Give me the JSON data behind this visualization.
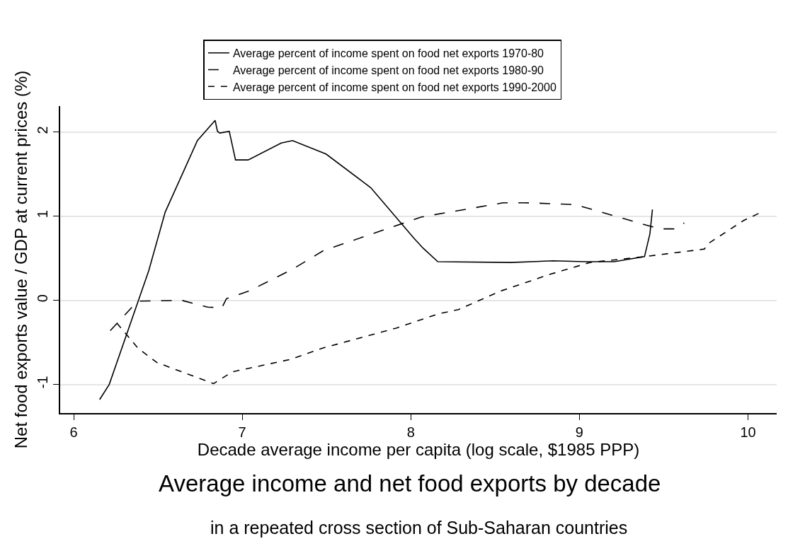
{
  "chart_data": {
    "type": "line",
    "title": "Average income and net food exports by decade",
    "subtitle": "in a repeated cross section of Sub-Saharan countries",
    "xlabel": "Decade average income per capita (log scale, $1985 PPP)",
    "ylabel": "Net food exports value / GDP at current prices (%)",
    "xlim": [
      5.92,
      10.17
    ],
    "xticks": [
      6,
      7,
      8,
      9,
      10
    ],
    "ylim": [
      -1.34,
      2.31
    ],
    "yticks": [
      -1,
      0,
      1,
      2
    ],
    "grid": "y",
    "legend": "top",
    "marker": "none",
    "series": [
      {
        "name": "Average percent of income spent on food net exports 1970-80",
        "color": "#000000",
        "line_style": "solid",
        "x": [
          6.154,
          6.211,
          6.445,
          6.543,
          6.734,
          6.839,
          6.853,
          6.867,
          6.923,
          6.96,
          7.035,
          7.231,
          7.298,
          7.497,
          7.762,
          8.018,
          8.073,
          8.16,
          8.594,
          8.844,
          9.033,
          9.206,
          9.386,
          9.418,
          9.433
        ],
        "values": [
          -1.18,
          -1.0,
          0.35,
          1.05,
          1.9,
          2.14,
          2.01,
          1.99,
          2.01,
          1.67,
          1.67,
          1.87,
          1.9,
          1.74,
          1.34,
          0.74,
          0.62,
          0.46,
          0.45,
          0.47,
          0.46,
          0.46,
          0.52,
          0.79,
          1.08
        ]
      },
      {
        "name": "Average percent of income spent on food net exports 1980-90",
        "color": "#000000",
        "line_style": "dashed",
        "x": [
          6.217,
          6.379,
          6.641,
          6.795,
          6.879,
          6.906,
          7.039,
          7.298,
          7.48,
          7.812,
          8.018,
          8.06,
          8.547,
          8.679,
          8.973,
          9.422,
          9.489,
          9.562,
          9.622
        ],
        "values": [
          -0.36,
          -0.01,
          0.0,
          -0.08,
          -0.09,
          0.02,
          0.11,
          0.37,
          0.59,
          0.82,
          0.96,
          0.99,
          1.16,
          1.16,
          1.14,
          0.88,
          0.85,
          0.85,
          0.92
        ]
      },
      {
        "name": "Average percent of income spent on food net exports 1990-2000",
        "color": "#000000",
        "line_style": "dotted",
        "x": [
          6.256,
          6.382,
          6.494,
          6.83,
          6.941,
          7.291,
          7.473,
          7.913,
          8.164,
          8.282,
          8.532,
          8.826,
          9.062,
          9.386,
          9.741,
          9.768,
          9.974,
          10.07
        ],
        "values": [
          -0.27,
          -0.57,
          -0.74,
          -0.99,
          -0.85,
          -0.7,
          -0.57,
          -0.33,
          -0.16,
          -0.11,
          0.11,
          0.31,
          0.45,
          0.52,
          0.61,
          0.68,
          0.95,
          1.04
        ]
      }
    ]
  }
}
